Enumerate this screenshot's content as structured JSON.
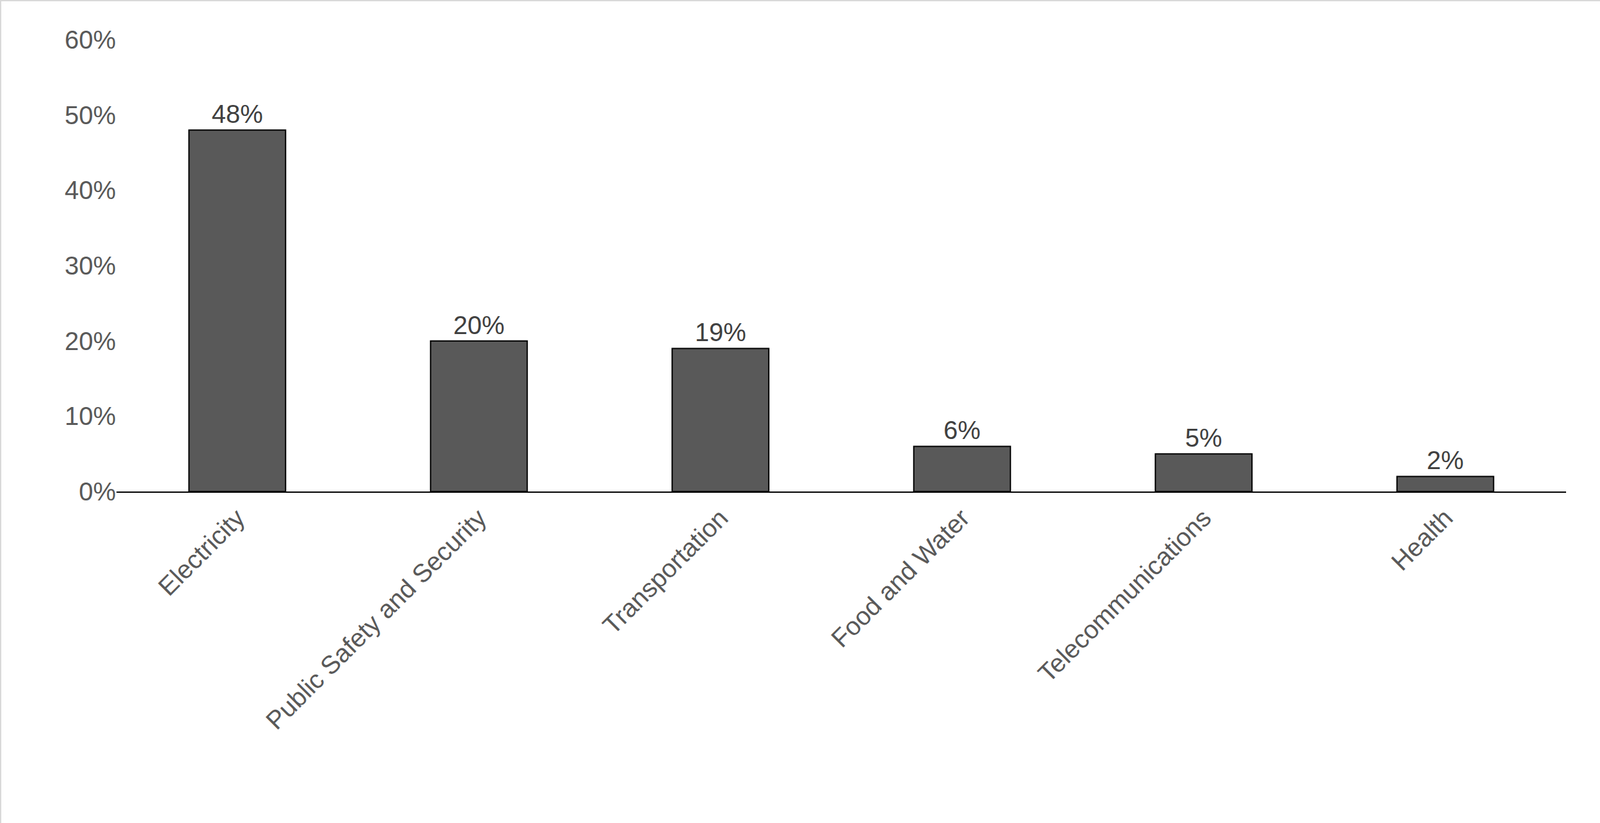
{
  "chart_data": {
    "type": "bar",
    "categories": [
      "Electricity",
      "Public Safety and Security",
      "Transportation",
      "Food and Water",
      "Telecommunications",
      "Health"
    ],
    "values": [
      48,
      20,
      19,
      6,
      5,
      2
    ],
    "value_labels": [
      "48%",
      "20%",
      "19%",
      "6%",
      "5%",
      "2%"
    ],
    "color": "#595959",
    "data_labels": true,
    "grid": false,
    "ylim": [
      0,
      60
    ],
    "yticks": [
      {
        "value": 0,
        "label": "0%"
      },
      {
        "value": 10,
        "label": "10%"
      },
      {
        "value": 20,
        "label": "20%"
      },
      {
        "value": 30,
        "label": "30%"
      },
      {
        "value": 40,
        "label": "40%"
      },
      {
        "value": 50,
        "label": "50%"
      },
      {
        "value": 60,
        "label": "60%"
      }
    ]
  }
}
